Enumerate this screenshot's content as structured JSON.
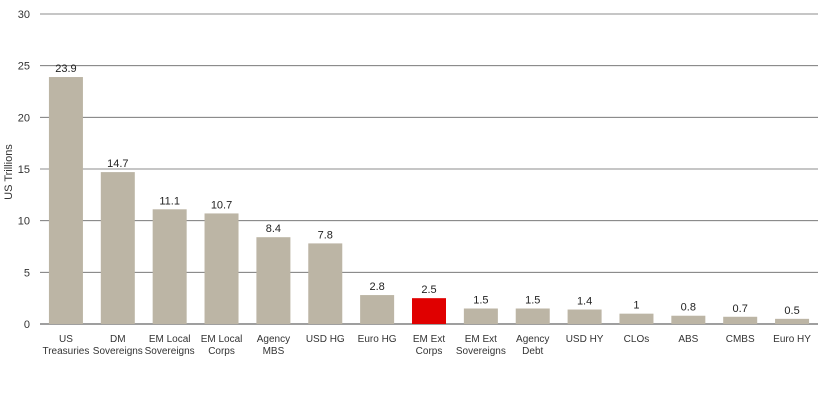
{
  "chart_data": {
    "type": "bar",
    "ylabel": "US Trillions",
    "ylim": [
      0,
      30
    ],
    "yticks": [
      0,
      5,
      10,
      15,
      20,
      25,
      30
    ],
    "grid": true,
    "categories": [
      [
        "US",
        "Treasuries"
      ],
      [
        "DM",
        "Sovereigns"
      ],
      [
        "EM Local",
        "Sovereigns"
      ],
      [
        "EM Local",
        "Corps"
      ],
      [
        "Agency",
        "MBS"
      ],
      [
        "USD HG"
      ],
      [
        "Euro HG"
      ],
      [
        "EM Ext",
        "Corps"
      ],
      [
        "EM Ext",
        "Sovereigns"
      ],
      [
        "Agency",
        "Debt"
      ],
      [
        "USD HY"
      ],
      [
        "CLOs"
      ],
      [
        "ABS"
      ],
      [
        "CMBS"
      ],
      [
        "Euro HY"
      ]
    ],
    "values": [
      23.9,
      14.7,
      11.1,
      10.7,
      8.4,
      7.8,
      2.8,
      2.5,
      1.5,
      1.5,
      1.4,
      1,
      0.8,
      0.7,
      0.5
    ],
    "highlight_index": 7,
    "colors": {
      "bar": "#bcb5a5",
      "highlight": "#e00000",
      "grid": "#666666"
    }
  }
}
